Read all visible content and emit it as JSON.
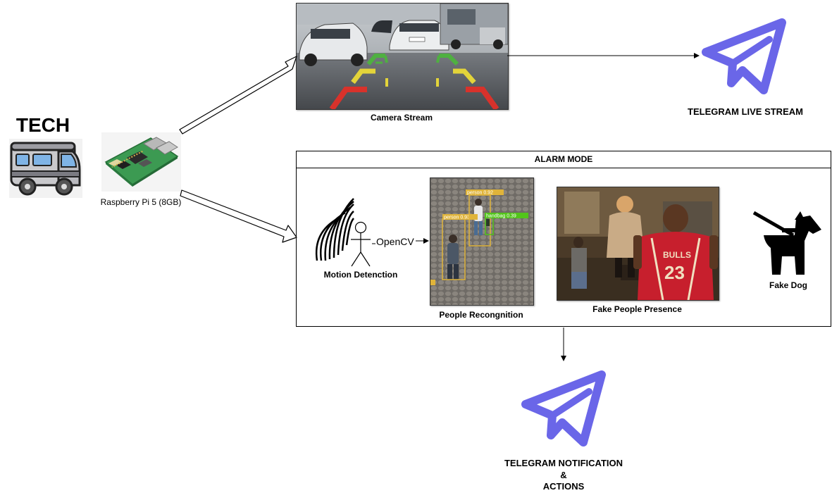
{
  "tech": {
    "title": "TECH"
  },
  "raspberry": {
    "label": "Raspberry Pi 5 (8GB)"
  },
  "camera": {
    "label": "Camera Stream"
  },
  "telegram_live": {
    "label": "TELEGRAM LIVE STREAM"
  },
  "alarm": {
    "header": "ALARM MODE",
    "motion_label": "Motion Detenction",
    "opencv_label": "OpenCV",
    "people_label": "People Recongnition",
    "detections": [
      "person 0.92",
      "person 0.93",
      "handbag 0.39"
    ],
    "fake_presence_label": "Fake People Presence",
    "fake_dog_label": "Fake Dog"
  },
  "telegram_notify": {
    "line1": "TELEGRAM NOTIFICATION",
    "line2": "&",
    "line3": "ACTIONS"
  },
  "colors": {
    "telegram": "#6a66e8",
    "guide_red": "#d8322b",
    "guide_yellow": "#e3d43a",
    "guide_green": "#4fb041",
    "box_yellow": "#e0b43a",
    "box_green": "#52c41a"
  }
}
